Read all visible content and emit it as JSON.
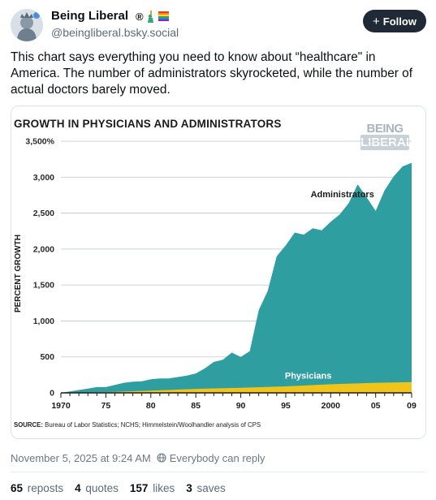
{
  "author": {
    "name": "Being Liberal",
    "badge_registered": "®",
    "handle": "@beingliberal.bsky.social",
    "avatar_icon": "liberty-portrait-avatar"
  },
  "follow": {
    "label": "Follow",
    "icon": "plus-icon"
  },
  "post": {
    "text": "This chart says everything you need to know about “healthcare\" in America. The number of administrators skyrocketed, while the number of actual doctors barely moved."
  },
  "chart_data": {
    "type": "area",
    "title": "GROWTH IN PHYSICIANS AND ADMINISTRATORS",
    "ylabel": "PERCENT GROWTH",
    "xlabel": "",
    "ylim": [
      0,
      3500
    ],
    "xlim": [
      1970,
      2009
    ],
    "yticks": [
      "3,500%",
      "3,000",
      "2,500",
      "2,000",
      "1,500",
      "1,000",
      "500",
      "0"
    ],
    "xticks": [
      "1970",
      "75",
      "80",
      "85",
      "90",
      "95",
      "2000",
      "05",
      "09"
    ],
    "watermark": [
      "BEING",
      "LIBERAL"
    ],
    "grid": true,
    "legend": "none",
    "series": [
      {
        "name": "Administrators",
        "color": "#2e9ea0",
        "x": [
          1970,
          1971,
          1972,
          1973,
          1974,
          1975,
          1976,
          1977,
          1978,
          1979,
          1980,
          1981,
          1982,
          1983,
          1984,
          1985,
          1986,
          1987,
          1988,
          1989,
          1990,
          1991,
          1992,
          1993,
          1994,
          1995,
          1996,
          1997,
          1998,
          1999,
          2000,
          2001,
          2002,
          2003,
          2004,
          2005,
          2006,
          2007,
          2008,
          2009
        ],
        "values": [
          0,
          20,
          40,
          60,
          80,
          80,
          110,
          140,
          155,
          160,
          190,
          200,
          200,
          220,
          240,
          270,
          340,
          430,
          460,
          560,
          500,
          580,
          1150,
          1420,
          1900,
          2050,
          2230,
          2200,
          2290,
          2260,
          2380,
          2480,
          2640,
          2900,
          2720,
          2530,
          2820,
          3010,
          3150,
          3200
        ]
      },
      {
        "name": "Physicians",
        "color": "#f0c419",
        "x": [
          1970,
          1975,
          1980,
          1985,
          1990,
          1995,
          2000,
          2005,
          2009
        ],
        "values": [
          0,
          10,
          30,
          55,
          70,
          90,
          120,
          140,
          150
        ]
      }
    ],
    "annotations": [
      "Administrators",
      "Physicians"
    ],
    "source_label": "SOURCE:",
    "source_text": "Bureau of Labor Statistics; NCHS; Himmelstein/Woolhandler analysis of CPS"
  },
  "meta": {
    "timestamp": "November 5, 2025 at 9:24 AM",
    "reply_setting": "Everybody can reply",
    "reply_icon": "globe-icon"
  },
  "stats": {
    "reposts": {
      "count": "65",
      "label": "reposts"
    },
    "quotes": {
      "count": "4",
      "label": "quotes"
    },
    "likes": {
      "count": "157",
      "label": "likes"
    },
    "saves": {
      "count": "3",
      "label": "saves"
    }
  },
  "colors": {
    "administrators": "#2e9ea0",
    "physicians": "#f0c419",
    "follow_button": "#1f2a36",
    "muted_text": "#6b7885"
  }
}
